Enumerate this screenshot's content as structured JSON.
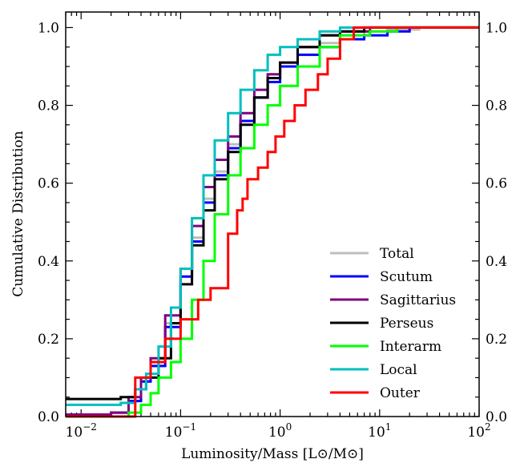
{
  "chart_data": {
    "type": "line",
    "step": true,
    "xlabel": "Luminosity/Mass [L⊙/M⊙]",
    "ylabel": "Cumulative Distribution",
    "xscale": "log",
    "xlim": [
      0.007,
      100
    ],
    "ylim": [
      0,
      1.04
    ],
    "x_tick_labels": [
      {
        "value": 0.01,
        "base": "10",
        "exp": "−2"
      },
      {
        "value": 0.1,
        "base": "10",
        "exp": "−1"
      },
      {
        "value": 1,
        "base": "10",
        "exp": "0"
      },
      {
        "value": 10,
        "base": "10",
        "exp": "1"
      },
      {
        "value": 100,
        "base": "10",
        "exp": "2"
      }
    ],
    "y_ticks": [
      0.0,
      0.2,
      0.4,
      0.6,
      0.8,
      1.0
    ],
    "y_tick_labels": [
      "0.0",
      "0.2",
      "0.4",
      "0.6",
      "0.8",
      "1.0"
    ],
    "right_y_tick_labels": true,
    "legend_position": "lower-right",
    "series": [
      {
        "name": "Total",
        "color": "#bdbdbd",
        "x": [
          0.007,
          0.02,
          0.03,
          0.04,
          0.05,
          0.07,
          0.1,
          0.13,
          0.17,
          0.22,
          0.3,
          0.4,
          0.55,
          0.75,
          1.0,
          1.5,
          2.5,
          4,
          7,
          12,
          25,
          100
        ],
        "y": [
          0.005,
          0.01,
          0.04,
          0.09,
          0.14,
          0.24,
          0.36,
          0.46,
          0.56,
          0.63,
          0.7,
          0.76,
          0.82,
          0.87,
          0.9,
          0.93,
          0.96,
          0.98,
          0.99,
          0.995,
          1.0,
          1.0
        ]
      },
      {
        "name": "Scutum",
        "color": "#0000ff",
        "x": [
          0.007,
          0.02,
          0.03,
          0.04,
          0.05,
          0.07,
          0.1,
          0.13,
          0.17,
          0.22,
          0.3,
          0.4,
          0.55,
          0.75,
          1.0,
          1.5,
          2.5,
          4,
          7,
          12,
          20,
          100
        ],
        "y": [
          0.005,
          0.01,
          0.04,
          0.09,
          0.13,
          0.23,
          0.36,
          0.45,
          0.55,
          0.62,
          0.69,
          0.76,
          0.82,
          0.86,
          0.9,
          0.93,
          0.95,
          0.97,
          0.98,
          0.99,
          1.0,
          1.0
        ]
      },
      {
        "name": "Sagittarius",
        "color": "#7f007f",
        "x": [
          0.007,
          0.02,
          0.03,
          0.04,
          0.05,
          0.07,
          0.1,
          0.13,
          0.17,
          0.22,
          0.3,
          0.4,
          0.55,
          0.75,
          1.0,
          1.5,
          2.5,
          4,
          8,
          100
        ],
        "y": [
          0.005,
          0.01,
          0.05,
          0.1,
          0.15,
          0.26,
          0.38,
          0.49,
          0.59,
          0.66,
          0.72,
          0.78,
          0.84,
          0.88,
          0.91,
          0.95,
          0.98,
          0.99,
          1.0,
          1.0
        ]
      },
      {
        "name": "Perseus",
        "color": "#000000",
        "x": [
          0.007,
          0.025,
          0.035,
          0.045,
          0.06,
          0.08,
          0.1,
          0.13,
          0.17,
          0.22,
          0.3,
          0.4,
          0.55,
          0.75,
          1.0,
          1.5,
          2.5,
          4,
          7,
          100
        ],
        "y": [
          0.045,
          0.05,
          0.07,
          0.1,
          0.15,
          0.24,
          0.34,
          0.44,
          0.53,
          0.61,
          0.68,
          0.75,
          0.82,
          0.87,
          0.91,
          0.95,
          0.98,
          0.99,
          1.0,
          1.0
        ]
      },
      {
        "name": "Interarm",
        "color": "#00ff00",
        "x": [
          0.007,
          0.03,
          0.04,
          0.05,
          0.06,
          0.08,
          0.1,
          0.13,
          0.17,
          0.22,
          0.3,
          0.4,
          0.55,
          0.75,
          1.0,
          1.5,
          2.5,
          4,
          8,
          15,
          100
        ],
        "y": [
          0.0,
          0.01,
          0.03,
          0.06,
          0.1,
          0.14,
          0.2,
          0.3,
          0.4,
          0.52,
          0.62,
          0.69,
          0.75,
          0.8,
          0.85,
          0.9,
          0.95,
          0.98,
          0.99,
          1.0,
          1.0
        ]
      },
      {
        "name": "Local",
        "color": "#00bfbf",
        "x": [
          0.007,
          0.025,
          0.035,
          0.045,
          0.06,
          0.08,
          0.1,
          0.13,
          0.17,
          0.22,
          0.3,
          0.4,
          0.55,
          0.75,
          1.0,
          1.5,
          2.5,
          4,
          6,
          100
        ],
        "y": [
          0.03,
          0.035,
          0.07,
          0.11,
          0.18,
          0.28,
          0.38,
          0.51,
          0.62,
          0.71,
          0.78,
          0.84,
          0.89,
          0.93,
          0.95,
          0.97,
          0.99,
          1.0,
          1.0,
          1.0
        ]
      },
      {
        "name": "Outer",
        "color": "#ff0000",
        "x": [
          0.007,
          0.035,
          0.05,
          0.07,
          0.1,
          0.15,
          0.2,
          0.3,
          0.37,
          0.42,
          0.47,
          0.6,
          0.75,
          0.9,
          1.1,
          1.4,
          1.8,
          2.4,
          3.0,
          4.0,
          5.5,
          100
        ],
        "y": [
          0.0,
          0.1,
          0.14,
          0.2,
          0.25,
          0.3,
          0.33,
          0.47,
          0.53,
          0.56,
          0.61,
          0.64,
          0.68,
          0.72,
          0.76,
          0.8,
          0.84,
          0.88,
          0.92,
          0.97,
          1.0,
          1.0
        ]
      }
    ]
  }
}
